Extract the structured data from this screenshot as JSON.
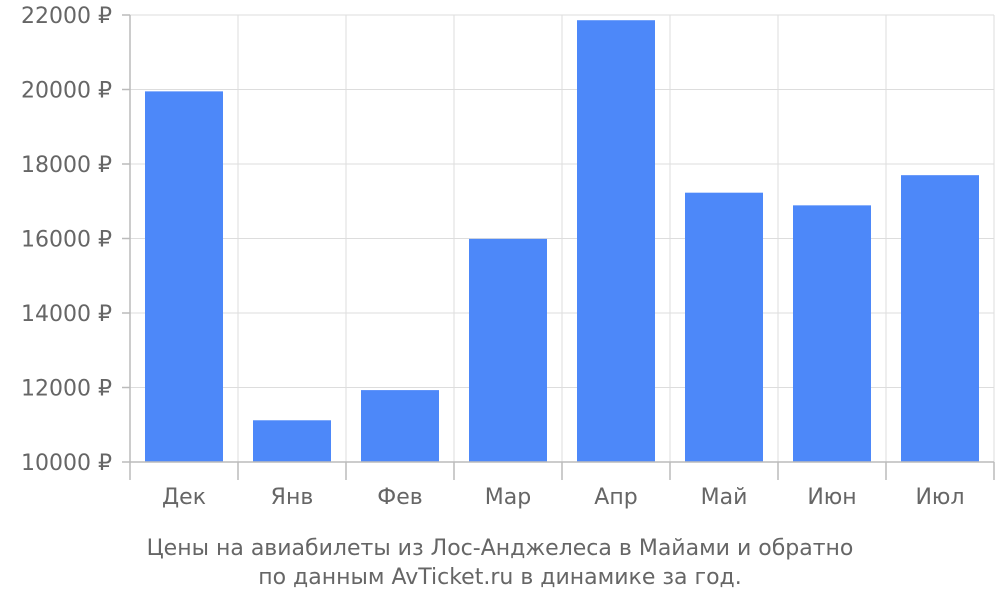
{
  "chart_data": {
    "type": "bar",
    "categories": [
      "Дек",
      "Янв",
      "Фев",
      "Мар",
      "Апр",
      "Май",
      "Июн",
      "Июл"
    ],
    "values": [
      19950,
      11120,
      11930,
      15990,
      21860,
      17230,
      16890,
      17700
    ],
    "ylim": [
      10000,
      22000
    ],
    "yticks": [
      10000,
      12000,
      14000,
      16000,
      18000,
      20000,
      22000
    ],
    "ytick_labels": [
      "10000 ₽",
      "12000 ₽",
      "14000 ₽",
      "16000 ₽",
      "18000 ₽",
      "20000 ₽",
      "22000 ₽"
    ],
    "grid": true,
    "bar_color": "#4d88f9",
    "caption_lines": [
      "Цены на авиабилеты из Лос-Анджелеса в Майами и обратно",
      "по данным AvTicket.ru в динамике за год."
    ]
  }
}
